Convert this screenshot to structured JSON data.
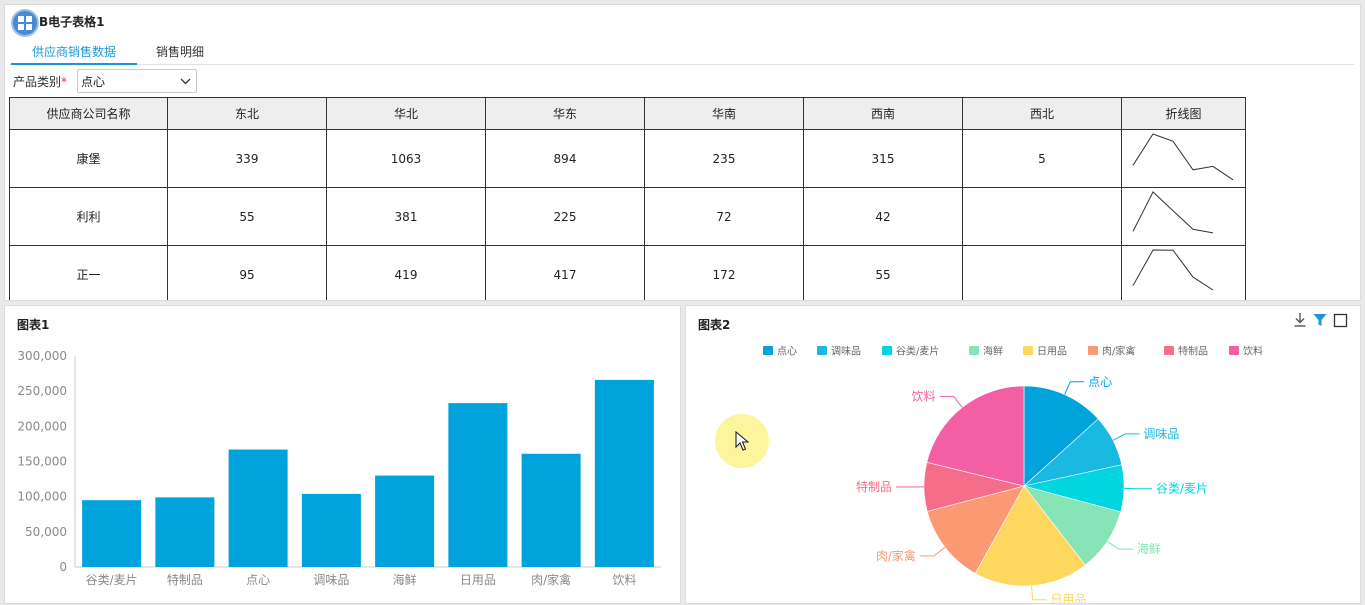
{
  "app": {
    "title": "B电子表格1",
    "icon": "grid-icon"
  },
  "tabs": [
    {
      "label": "供应商销售数据",
      "active": true
    },
    {
      "label": "销售明细",
      "active": false
    }
  ],
  "filter": {
    "label": "产品类别",
    "required_mark": "*",
    "value": "点心"
  },
  "table": {
    "headers": [
      "供应商公司名称",
      "东北",
      "华北",
      "华东",
      "华南",
      "西南",
      "西北",
      "折线图"
    ],
    "rows": [
      {
        "name": "康堡",
        "values": [
          "339",
          "1063",
          "894",
          "235",
          "315",
          "5"
        ],
        "spark": [
          339,
          1063,
          894,
          235,
          315,
          5
        ]
      },
      {
        "name": "利利",
        "values": [
          "55",
          "381",
          "225",
          "72",
          "42",
          ""
        ],
        "spark": [
          55,
          381,
          225,
          72,
          42
        ]
      },
      {
        "name": "正一",
        "values": [
          "95",
          "419",
          "417",
          "172",
          "55",
          ""
        ],
        "spark": [
          95,
          419,
          417,
          172,
          55
        ]
      }
    ]
  },
  "chart1": {
    "title": "图表1",
    "colors": {
      "bar": "#00a3dc",
      "axis_text": "#8a8a8a"
    },
    "chart_data": {
      "type": "bar",
      "title": "",
      "categories": [
        "谷类/麦片",
        "特制品",
        "点心",
        "调味品",
        "海鲜",
        "日用品",
        "肉/家禽",
        "饮料"
      ],
      "values": [
        95000,
        99000,
        167000,
        104000,
        130000,
        233000,
        161000,
        266000
      ],
      "ylim": [
        0,
        300000
      ],
      "yticks": [
        "0",
        "50,000",
        "100,000",
        "150,000",
        "200,000",
        "250,000",
        "300,000"
      ],
      "grid": false,
      "legend": "none"
    }
  },
  "chart2": {
    "title": "图表2",
    "toolbar": {
      "download": "download-icon",
      "filter": "filter-icon",
      "maximize": "maximize-icon"
    },
    "chart_data": {
      "type": "pie",
      "title": "",
      "legend": "top",
      "labels": [
        "点心",
        "调味品",
        "谷类/麦片",
        "海鲜",
        "日用品",
        "肉/家禽",
        "特制品",
        "饮料"
      ],
      "values": [
        167000,
        104000,
        95000,
        130000,
        233000,
        161000,
        99000,
        266000
      ],
      "colors": [
        "#00a3dc",
        "#19b9e2",
        "#00d5e0",
        "#86e4b6",
        "#fed75f",
        "#fa9973",
        "#f66d8a",
        "#f45fa4"
      ]
    }
  }
}
